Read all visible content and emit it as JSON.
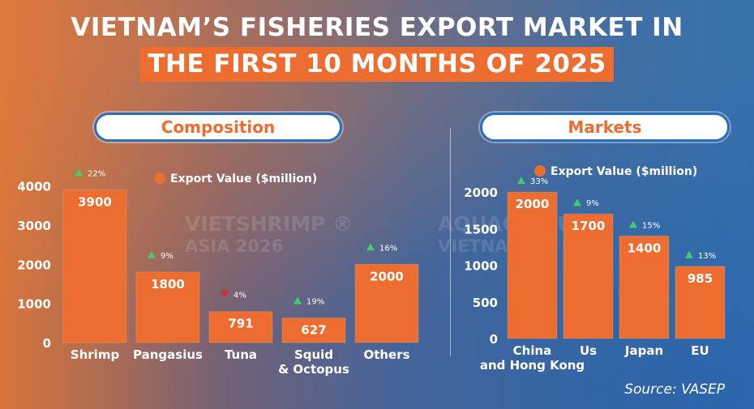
{
  "title": {
    "line1": "VIETNAM’S FISHERIES EXPORT MARKET IN",
    "line2": "THE FIRST 10 MONTHS OF 2025"
  },
  "watermarks": [
    "VIETSHRIMP ®",
    "ASIA 2026",
    "AQUACULTURE",
    "VIETNAM"
  ],
  "source": "Source: VASEP",
  "colors": {
    "bar": "#ec6d2f",
    "up": "#3fcf6a",
    "down": "#d42a2a",
    "accent": "#ec6d2f"
  },
  "chart_data": [
    {
      "type": "bar",
      "title": "Composition",
      "legend": "Export Value ($million)",
      "legend_position": "top",
      "categories": [
        "Shrimp",
        "Pangasius",
        "Tuna",
        "Squid\n& Octopus",
        "Others"
      ],
      "values": [
        3900,
        1800,
        791,
        627,
        2000
      ],
      "value_labels": [
        "3900",
        "1800",
        "791",
        "627",
        "2000"
      ],
      "change": [
        "22%",
        "9%",
        "4%",
        "19%",
        "16%"
      ],
      "change_direction": [
        "up",
        "up",
        "down",
        "up",
        "up"
      ],
      "yticks": [
        0,
        1000,
        2000,
        3000,
        4000
      ],
      "ylim": [
        0,
        4300
      ],
      "grid": false
    },
    {
      "type": "bar",
      "title": "Markets",
      "legend": "Export Value ($million)",
      "legend_position": "top",
      "categories": [
        "China\nand Hong Kong",
        "Us",
        "Japan",
        "EU"
      ],
      "values": [
        2000,
        1700,
        1400,
        985
      ],
      "value_labels": [
        "2000",
        "1700",
        "1400",
        "985"
      ],
      "change": [
        "33%",
        "9%",
        "15%",
        "13%"
      ],
      "change_direction": [
        "up",
        "up",
        "up",
        "up"
      ],
      "yticks": [
        0,
        500,
        1000,
        1500,
        2000
      ],
      "ylim": [
        0,
        2200
      ],
      "grid": false
    }
  ]
}
